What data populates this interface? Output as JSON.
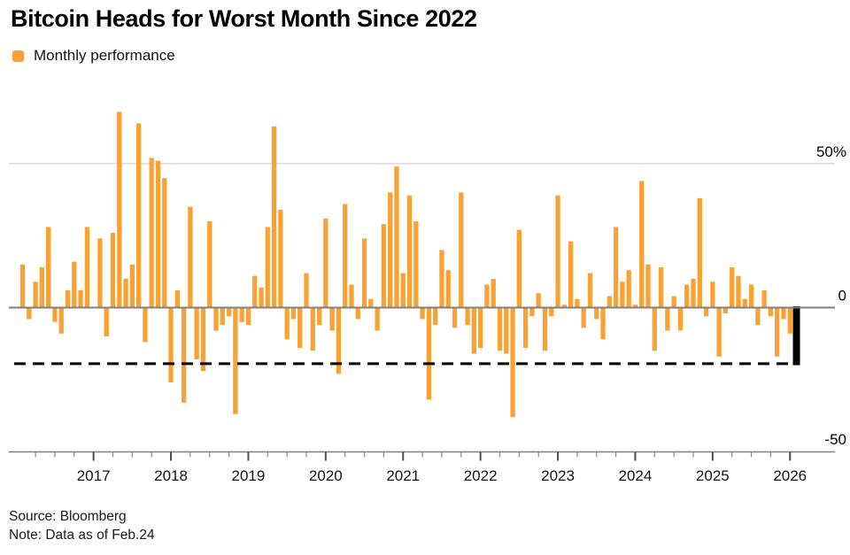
{
  "title": "Bitcoin Heads for Worst Month Since 2022",
  "legend": {
    "label": "Monthly performance",
    "swatch_color": "#F9A233"
  },
  "footer": {
    "source": "Source: Bloomberg",
    "note": "Note: Data as of Feb.24"
  },
  "chart_data": {
    "type": "bar",
    "title": "Bitcoin Heads for Worst Month Since 2022",
    "series_name": "Monthly performance",
    "x_start": "2016-02",
    "x_frequency": "monthly",
    "values_pct": [
      15,
      -4,
      9,
      14,
      28,
      -5,
      -9,
      6,
      16,
      6,
      28,
      0,
      24,
      -10,
      26,
      68,
      10,
      15,
      64,
      -12,
      52,
      51,
      45,
      -26,
      6,
      -33,
      35,
      -18,
      -22,
      30,
      -8,
      -6,
      -3,
      -37,
      -5,
      -6,
      11,
      7,
      28,
      63,
      34,
      -11,
      -4,
      -14,
      12,
      -15,
      -6,
      31,
      -8,
      -23,
      36,
      8,
      -4,
      24,
      3,
      -8,
      29,
      40,
      49,
      12,
      39,
      30,
      -4,
      -32,
      -6,
      20,
      13,
      -7,
      40,
      -6,
      -16,
      -14,
      8,
      10,
      -15,
      -16,
      -38,
      27,
      -14,
      -3,
      5,
      -15,
      -3,
      39,
      1,
      23,
      3,
      -7,
      12,
      -4,
      -11,
      4,
      28,
      9,
      13,
      1,
      44,
      15,
      -15,
      14,
      -8,
      4,
      -8,
      8,
      10,
      38,
      -3,
      9,
      -17,
      -2,
      14,
      11,
      3,
      8,
      -6,
      6,
      -3,
      -17,
      -4,
      -9,
      -20
    ],
    "highlight_last": {
      "label": "2026-02",
      "value_pct": -20,
      "color": "#000000"
    },
    "reference_line_pct": -19.5,
    "y_axis": {
      "range": [
        -50,
        73
      ],
      "ticks": [
        {
          "v": 50,
          "label": "50%"
        },
        {
          "v": 0,
          "label": "0"
        },
        {
          "v": -50,
          "label": "-50"
        }
      ]
    },
    "x_axis": {
      "year_labels": [
        "2017",
        "2018",
        "2019",
        "2020",
        "2021",
        "2022",
        "2023",
        "2024",
        "2025",
        "2026"
      ],
      "minor_tick": "quarterly"
    },
    "colors": {
      "bar": "#F9A233",
      "highlight": "#000000",
      "zero_line": "#7f7f7f",
      "grid": "#d9d9d9",
      "axis": "#7f7f7f",
      "major_tick": "#4d4d4d",
      "minor_tick": "#8c8c8c",
      "dashed": "#000000"
    },
    "legend_position": "top-left",
    "grid": "single-50pct-gridline"
  }
}
